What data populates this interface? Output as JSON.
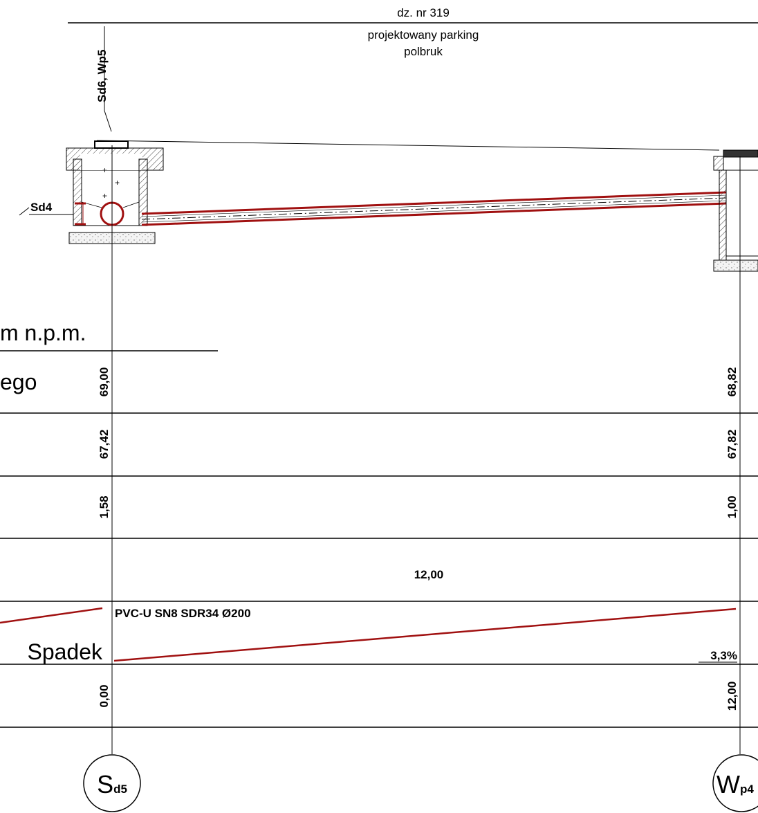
{
  "parcel": {
    "number": "dz. nr 319",
    "description": "projektowany parking",
    "surface": "polbruk"
  },
  "manholes": {
    "left": {
      "top_label": "Sd6, Wp5",
      "side_label": "Sd4",
      "tag_main": "S",
      "tag_sub": "d5"
    },
    "right": {
      "tag_main": "W",
      "tag_sub": "p4"
    }
  },
  "table": {
    "header_unit": "m n.p.m.",
    "row_ground_label_fragment": "ego",
    "row_ground": {
      "left": "69,00",
      "right": "68,82"
    },
    "row_invert": {
      "left": "67,42",
      "right": "67,82"
    },
    "row_depth": {
      "left": "1,58",
      "right": "1,00"
    },
    "row_length": "12,00",
    "row_slope_label": "Spadek",
    "pipe_spec": "PVC-U SN8 SDR34 Ø200",
    "slope_value": "3,3%",
    "row_distance": {
      "left": "0,00",
      "right": "12,00"
    }
  },
  "colors": {
    "pipe": "#a01010",
    "line": "#000000",
    "hatch": "#555555"
  }
}
